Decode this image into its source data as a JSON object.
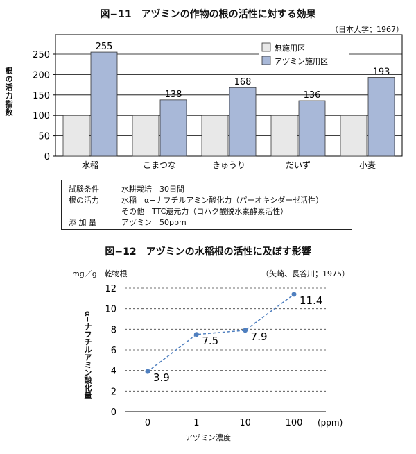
{
  "fig1": {
    "title": "図−11　アヅミンの作物の根の活性に対する効果",
    "source": "（日本大学；1967）",
    "ylabel": "根の活力指数"
  },
  "fig2": {
    "title": "図−12　アヅミンの水稲根の活性に及ぼす影響",
    "unit": "mg／g　乾物根",
    "source": "（矢崎、長谷川；1975）",
    "ylabel": "α−ナフチルアミン酸化量",
    "xlabel": "アヅミン濃度",
    "x_unit": "(ppm)"
  },
  "notes": [
    {
      "label": "試験条件",
      "value": "水耕栽培　30日間"
    },
    {
      "label": "根の活力",
      "value": "水稲　α−ナフチルアミン酸化力（パーオキシダーゼ活性）"
    },
    {
      "label": "",
      "value": "その他　TTC還元力（コハク酸脱水素酵素活性）"
    },
    {
      "label": "添 加 量",
      "value": "アヅミン　50ppm"
    }
  ],
  "colors": {
    "control_bar": "#e8e8e8",
    "azumin_bar": "#a8b8d8",
    "line": "#4f7fbf",
    "grid": "#000000"
  },
  "chart_data": [
    {
      "type": "bar",
      "title": "図−11　アヅミンの作物の根の活性に対する効果",
      "ylabel": "根の活力指数",
      "categories": [
        "水稲",
        "こまつな",
        "きゅうり",
        "だいず",
        "小麦"
      ],
      "series": [
        {
          "name": "無施用区",
          "values": [
            100,
            100,
            100,
            100,
            100
          ],
          "color": "#e8e8e8"
        },
        {
          "name": "アヅミン施用区",
          "values": [
            255,
            138,
            168,
            136,
            193
          ],
          "color": "#a8b8d8"
        }
      ],
      "data_labels": [
        {
          "category": "水稲",
          "series": "アヅミン施用区",
          "label": "255"
        },
        {
          "category": "こまつな",
          "series": "アヅミン施用区",
          "label": "138"
        },
        {
          "category": "きゅうり",
          "series": "アヅミン施用区",
          "label": "168"
        },
        {
          "category": "だいず",
          "series": "アヅミン施用区",
          "label": "136"
        },
        {
          "category": "小麦",
          "series": "アヅミン施用区",
          "label": "193"
        }
      ],
      "ylim": [
        0,
        250
      ],
      "yticks": [
        "0",
        "50",
        "100",
        "150",
        "200",
        "250"
      ],
      "grid": true,
      "legend": "top-right"
    },
    {
      "type": "line",
      "title": "図−12　アヅミンの水稲根の活性に及ぼす影響",
      "xlabel": "アヅミン濃度",
      "ylabel": "α−ナフチルアミン酸化量",
      "categories": [
        "0",
        "1",
        "10",
        "100"
      ],
      "series": [
        {
          "name": "",
          "values": [
            3.9,
            7.5,
            7.9,
            11.4
          ],
          "labels": [
            "3.9",
            "7.5",
            "7.9",
            "11.4"
          ],
          "style": "dashed"
        }
      ],
      "ylim": [
        0,
        12
      ],
      "yticks": [
        "0",
        "2",
        "4",
        "6",
        "8",
        "10",
        "12"
      ],
      "grid": "dashed"
    }
  ]
}
